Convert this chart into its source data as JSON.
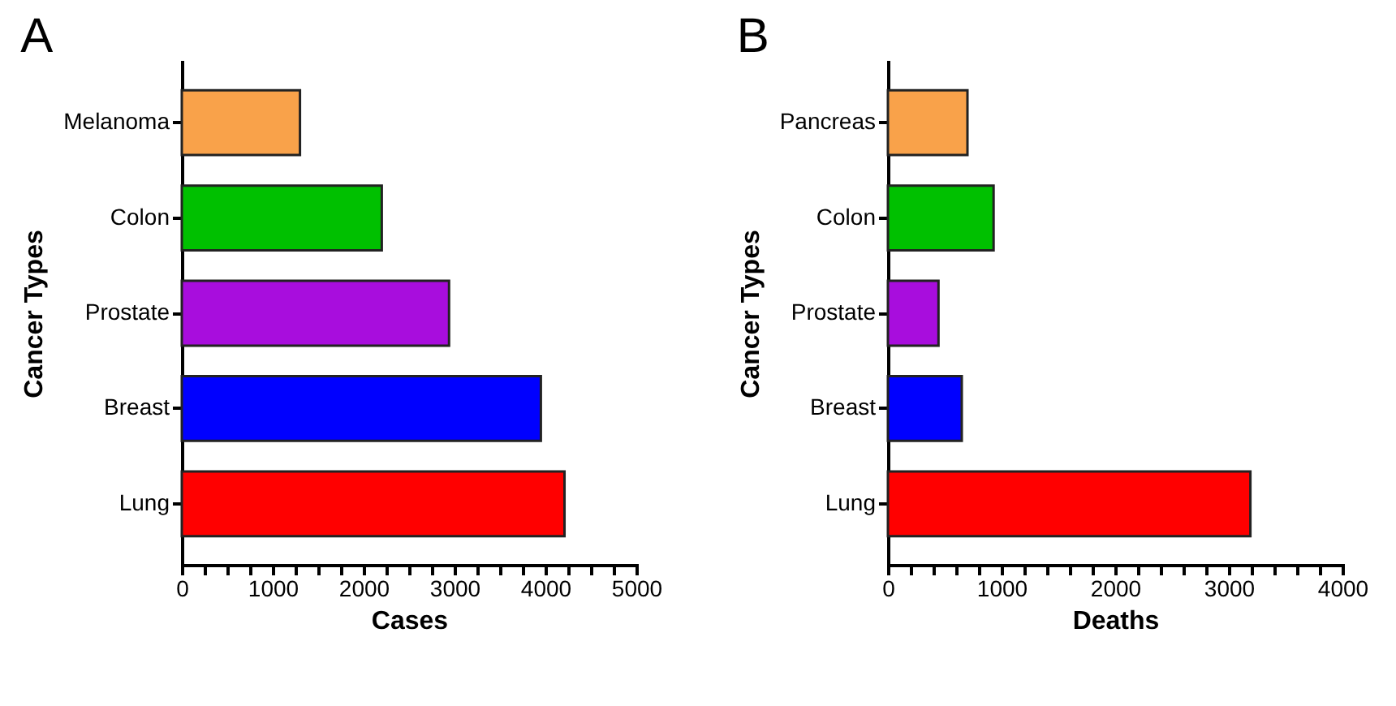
{
  "chart_data": [
    {
      "type": "bar",
      "title": "A",
      "orientation": "horizontal",
      "xlabel": "Cases",
      "ylabel": "Cancer Types",
      "categories": [
        "Melanoma",
        "Colon",
        "Prostate",
        "Breast",
        "Lung"
      ],
      "values": [
        1300,
        2200,
        2940,
        3950,
        4210
      ],
      "colors": [
        "#f9a24a",
        "#00c000",
        "#a80ddd",
        "#0000ff",
        "#ff0000"
      ],
      "xlim": [
        0,
        5000
      ],
      "xticks": [
        0,
        {
          "value": 250,
          "label": null
        },
        {
          "value": 500,
          "label": null
        },
        {
          "value": 750,
          "label": null
        },
        1000,
        {
          "value": 1250,
          "label": null
        },
        {
          "value": 1500,
          "label": null
        },
        {
          "value": 1750,
          "label": null
        },
        2000,
        {
          "value": 2250,
          "label": null
        },
        {
          "value": 2500,
          "label": null
        },
        {
          "value": 2750,
          "label": null
        },
        3000,
        {
          "value": 3250,
          "label": null
        },
        {
          "value": 3500,
          "label": null
        },
        {
          "value": 3750,
          "label": null
        },
        4000,
        {
          "value": 4250,
          "label": null
        },
        {
          "value": 4500,
          "label": null
        },
        {
          "value": 4750,
          "label": null
        },
        5000
      ],
      "grid": false
    },
    {
      "type": "bar",
      "title": "B",
      "orientation": "horizontal",
      "xlabel": "Deaths",
      "ylabel": "Cancer Types",
      "categories": [
        "Pancreas",
        "Colon",
        "Prostate",
        "Breast",
        "Lung"
      ],
      "values": [
        700,
        930,
        445,
        650,
        3190
      ],
      "colors": [
        "#f9a24a",
        "#00c000",
        "#a80ddd",
        "#0000ff",
        "#ff0000"
      ],
      "xlim": [
        0,
        4000
      ],
      "xticks": [
        0,
        {
          "value": 200,
          "label": null
        },
        {
          "value": 400,
          "label": null
        },
        {
          "value": 600,
          "label": null
        },
        {
          "value": 800,
          "label": null
        },
        1000,
        {
          "value": 1200,
          "label": null
        },
        {
          "value": 1400,
          "label": null
        },
        {
          "value": 1600,
          "label": null
        },
        {
          "value": 1800,
          "label": null
        },
        2000,
        {
          "value": 2200,
          "label": null
        },
        {
          "value": 2400,
          "label": null
        },
        {
          "value": 2600,
          "label": null
        },
        {
          "value": 2800,
          "label": null
        },
        3000,
        {
          "value": 3200,
          "label": null
        },
        {
          "value": 3400,
          "label": null
        },
        {
          "value": 3600,
          "label": null
        },
        {
          "value": 3800,
          "label": null
        },
        4000
      ],
      "grid": false
    }
  ]
}
